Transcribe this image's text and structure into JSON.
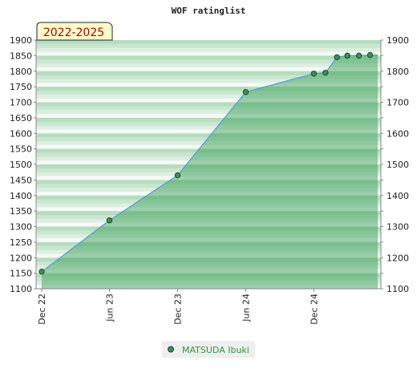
{
  "chart_data": {
    "type": "area",
    "title": "WOF ratinglist",
    "period_label": "2022-2025",
    "xlabel": "",
    "ylabel": "",
    "ylim": [
      1100,
      1900
    ],
    "y_ticks": [
      1100,
      1150,
      1200,
      1250,
      1300,
      1350,
      1400,
      1450,
      1500,
      1550,
      1600,
      1650,
      1700,
      1750,
      1800,
      1850,
      1900
    ],
    "y_ticks_right": [
      1100,
      1200,
      1300,
      1400,
      1500,
      1600,
      1700,
      1800,
      1900
    ],
    "x_range": [
      "2022-12-01",
      "2025-05-15"
    ],
    "x_ticks": [
      {
        "date": "2022-12-01",
        "label": "Dec 22"
      },
      {
        "date": "2023-06-01",
        "label": "Jun 23"
      },
      {
        "date": "2023-12-01",
        "label": "Dec 23"
      },
      {
        "date": "2024-06-01",
        "label": "Jun 24"
      },
      {
        "date": "2024-12-01",
        "label": "Dec 24"
      }
    ],
    "grid": false,
    "legend_position": "bottom-center",
    "series": [
      {
        "name": "MATSUDA Ibuki",
        "points": [
          {
            "x": "2022-12-01",
            "y": 1155
          },
          {
            "x": "2023-06-01",
            "y": 1320
          },
          {
            "x": "2023-12-01",
            "y": 1465
          },
          {
            "x": "2024-06-01",
            "y": 1733
          },
          {
            "x": "2024-12-01",
            "y": 1792
          },
          {
            "x": "2025-01-01",
            "y": 1795
          },
          {
            "x": "2025-02-01",
            "y": 1845
          },
          {
            "x": "2025-03-01",
            "y": 1850
          },
          {
            "x": "2025-04-01",
            "y": 1850
          },
          {
            "x": "2025-05-01",
            "y": 1852
          }
        ]
      }
    ]
  },
  "colors": {
    "line": "#4a9fd8",
    "marker_fill": "#3d8f55",
    "marker_stroke": "#1d4d2b",
    "area_fill": "#2f9a4e",
    "band_dark": "#b6dcbf",
    "band_light": "#f4faf5",
    "legend_text": "#2e9a3e",
    "range_box": "#ffffcc",
    "range_text": "#b00000"
  }
}
